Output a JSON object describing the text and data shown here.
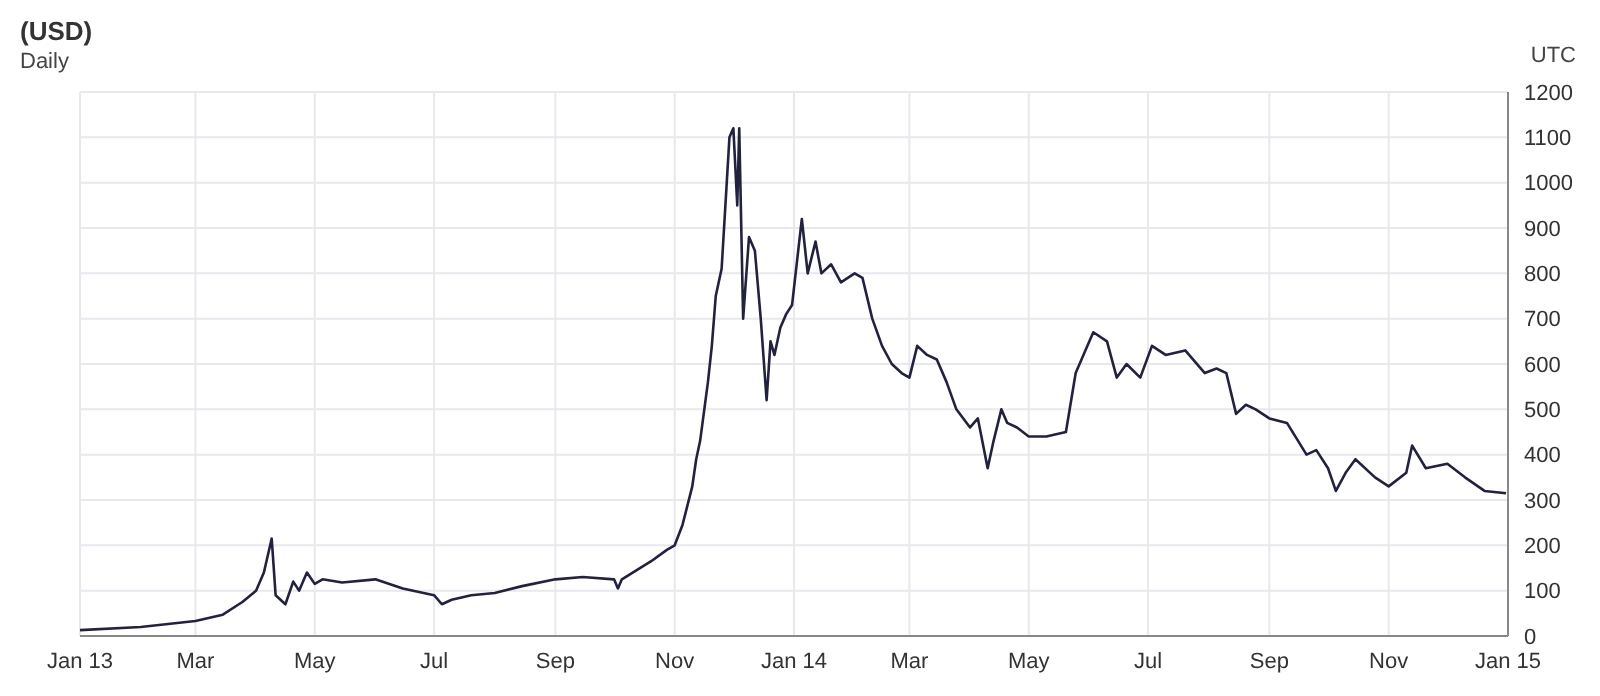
{
  "chart_data": {
    "type": "line",
    "title": "(USD)",
    "subtitle": "Daily",
    "annotations": [
      "UTC"
    ],
    "x": [
      "2013-01-01",
      "2013-02-01",
      "2013-03-01",
      "2013-03-15",
      "2013-03-25",
      "2013-04-01",
      "2013-04-05",
      "2013-04-09",
      "2013-04-11",
      "2013-04-16",
      "2013-04-20",
      "2013-04-23",
      "2013-04-27",
      "2013-05-01",
      "2013-05-05",
      "2013-05-15",
      "2013-06-01",
      "2013-06-15",
      "2013-07-01",
      "2013-07-05",
      "2013-07-10",
      "2013-07-20",
      "2013-08-01",
      "2013-08-15",
      "2013-09-01",
      "2013-09-15",
      "2013-10-01",
      "2013-10-03",
      "2013-10-05",
      "2013-10-20",
      "2013-10-28",
      "2013-11-01",
      "2013-11-05",
      "2013-11-10",
      "2013-11-12",
      "2013-11-14",
      "2013-11-18",
      "2013-11-20",
      "2013-11-22",
      "2013-11-25",
      "2013-11-29",
      "2013-12-01",
      "2013-12-03",
      "2013-12-04",
      "2013-12-06",
      "2013-12-09",
      "2013-12-12",
      "2013-12-15",
      "2013-12-18",
      "2013-12-20",
      "2013-12-22",
      "2013-12-25",
      "2013-12-28",
      "2013-12-31",
      "2014-01-05",
      "2014-01-08",
      "2014-01-12",
      "2014-01-15",
      "2014-01-20",
      "2014-01-25",
      "2014-02-01",
      "2014-02-05",
      "2014-02-10",
      "2014-02-15",
      "2014-02-20",
      "2014-02-25",
      "2014-03-01",
      "2014-03-05",
      "2014-03-10",
      "2014-03-15",
      "2014-03-20",
      "2014-03-25",
      "2014-04-01",
      "2014-04-05",
      "2014-04-10",
      "2014-04-13",
      "2014-04-17",
      "2014-04-20",
      "2014-04-25",
      "2014-05-01",
      "2014-05-10",
      "2014-05-20",
      "2014-05-25",
      "2014-06-01",
      "2014-06-03",
      "2014-06-10",
      "2014-06-15",
      "2014-06-20",
      "2014-06-27",
      "2014-07-03",
      "2014-07-10",
      "2014-07-20",
      "2014-07-30",
      "2014-08-05",
      "2014-08-10",
      "2014-08-15",
      "2014-08-20",
      "2014-08-25",
      "2014-09-01",
      "2014-09-10",
      "2014-09-20",
      "2014-09-25",
      "2014-10-01",
      "2014-10-05",
      "2014-10-10",
      "2014-10-15",
      "2014-10-25",
      "2014-11-01",
      "2014-11-10",
      "2014-11-13",
      "2014-11-20",
      "2014-12-01",
      "2014-12-10",
      "2014-12-20",
      "2014-12-31"
    ],
    "series": [
      {
        "color": "#22223f",
        "values": [
          13,
          20,
          33,
          47,
          75,
          100,
          140,
          215,
          90,
          70,
          120,
          100,
          140,
          115,
          125,
          118,
          125,
          105,
          90,
          70,
          80,
          90,
          95,
          110,
          125,
          130,
          125,
          105,
          125,
          165,
          190,
          200,
          245,
          330,
          390,
          430,
          560,
          640,
          750,
          810,
          1100,
          1120,
          950,
          1120,
          700,
          880,
          850,
          700,
          520,
          650,
          620,
          680,
          710,
          730,
          920,
          800,
          870,
          800,
          820,
          780,
          800,
          790,
          700,
          640,
          600,
          580,
          570,
          640,
          620,
          610,
          560,
          500,
          460,
          480,
          370,
          430,
          500,
          470,
          460,
          440,
          440,
          450,
          580,
          650,
          670,
          650,
          570,
          600,
          570,
          640,
          620,
          630,
          580,
          590,
          580,
          490,
          510,
          500,
          480,
          470,
          400,
          410,
          370,
          320,
          360,
          390,
          350,
          330,
          360,
          420,
          370,
          380,
          350,
          320,
          315
        ]
      }
    ],
    "xlim": [
      "2013-01-01",
      "2015-01-01"
    ],
    "xticks": [
      {
        "value": "2013-01-01",
        "label": "Jan 13"
      },
      {
        "value": "2013-03-01",
        "label": "Mar"
      },
      {
        "value": "2013-05-01",
        "label": "May"
      },
      {
        "value": "2013-07-01",
        "label": "Jul"
      },
      {
        "value": "2013-09-01",
        "label": "Sep"
      },
      {
        "value": "2013-11-01",
        "label": "Nov"
      },
      {
        "value": "2014-01-01",
        "label": "Jan 14"
      },
      {
        "value": "2014-03-01",
        "label": "Mar"
      },
      {
        "value": "2014-05-01",
        "label": "May"
      },
      {
        "value": "2014-07-01",
        "label": "Jul"
      },
      {
        "value": "2014-09-01",
        "label": "Sep"
      },
      {
        "value": "2014-11-01",
        "label": "Nov"
      },
      {
        "value": "2015-01-01",
        "label": "Jan 15"
      }
    ],
    "ylim": [
      0,
      1200
    ],
    "yticks": [
      0,
      100,
      200,
      300,
      400,
      500,
      600,
      700,
      800,
      900,
      1000,
      1100,
      1200
    ],
    "grid": true,
    "marker": "none",
    "line_style": "solid"
  }
}
